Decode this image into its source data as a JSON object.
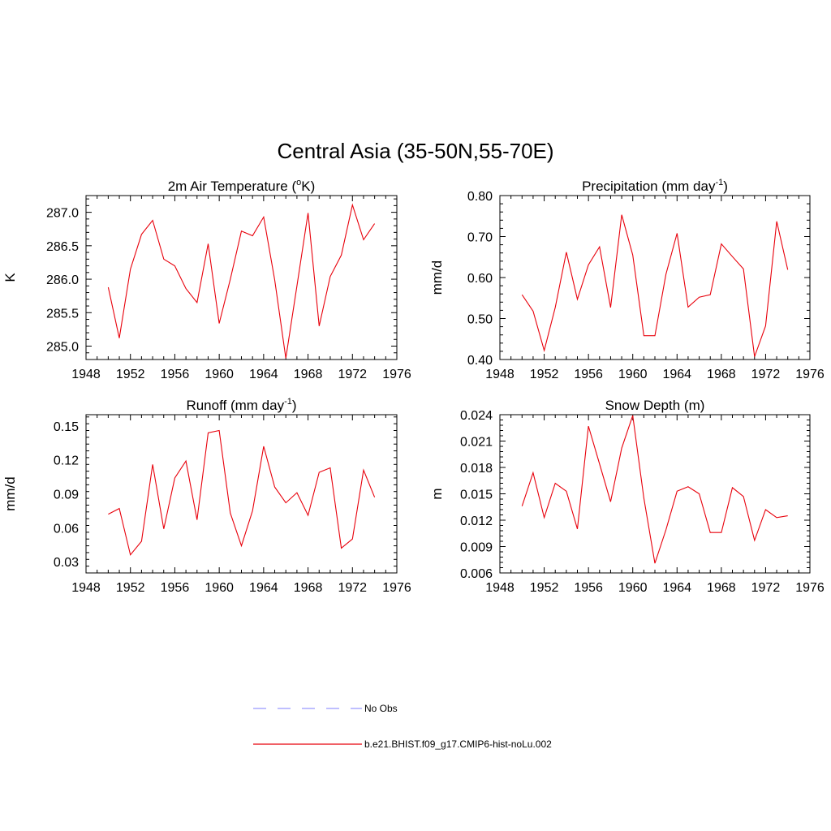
{
  "title": "Central Asia (35-50N,55-70E)",
  "colors": {
    "model": "#e8000b",
    "obs": "#9999ff"
  },
  "legend": {
    "obs_label": "No Obs",
    "model_label": "b.e21.BHIST.f09_g17.CMIP6-hist-noLu.002"
  },
  "chart_data": [
    {
      "type": "line",
      "title_main": "2m Air Temperature (",
      "title_sup": "o",
      "title_end": "K)",
      "ylabel": "K",
      "xlim": [
        1948,
        1976
      ],
      "xticks": [
        1948,
        1952,
        1956,
        1960,
        1964,
        1968,
        1972,
        1976
      ],
      "ylim": [
        284.8,
        287.25
      ],
      "yticks": [
        285.0,
        285.5,
        286.0,
        286.5,
        287.0
      ],
      "ytick_labels": [
        "285.0",
        "285.5",
        "286.0",
        "286.5",
        "287.0"
      ],
      "x": [
        1950,
        1951,
        1952,
        1953,
        1954,
        1955,
        1956,
        1957,
        1958,
        1959,
        1960,
        1961,
        1962,
        1963,
        1964,
        1965,
        1966,
        1967,
        1968,
        1969,
        1970,
        1971,
        1972,
        1973,
        1974
      ],
      "series": [
        {
          "values": [
            285.88,
            285.12,
            286.15,
            286.67,
            286.88,
            286.3,
            286.2,
            285.86,
            285.65,
            286.53,
            285.34,
            286.0,
            286.72,
            286.65,
            286.93,
            285.99,
            284.82,
            285.9,
            286.99,
            285.3,
            286.04,
            286.36,
            287.11,
            286.59,
            286.83
          ]
        }
      ]
    },
    {
      "type": "line",
      "title_main": "Precipitation (mm day",
      "title_sup": "-1",
      "title_end": ")",
      "ylabel": "mm/d",
      "xlim": [
        1948,
        1976
      ],
      "xticks": [
        1948,
        1952,
        1956,
        1960,
        1964,
        1968,
        1972,
        1976
      ],
      "ylim": [
        0.4,
        0.8
      ],
      "yticks": [
        0.4,
        0.5,
        0.6,
        0.7,
        0.8
      ],
      "ytick_labels": [
        "0.40",
        "0.50",
        "0.60",
        "0.70",
        "0.80"
      ],
      "x": [
        1950,
        1951,
        1952,
        1953,
        1954,
        1955,
        1956,
        1957,
        1958,
        1959,
        1960,
        1961,
        1962,
        1963,
        1964,
        1965,
        1966,
        1967,
        1968,
        1969,
        1970,
        1971,
        1972,
        1973,
        1974
      ],
      "series": [
        {
          "values": [
            0.558,
            0.518,
            0.422,
            0.527,
            0.662,
            0.547,
            0.631,
            0.675,
            0.527,
            0.753,
            0.655,
            0.458,
            0.458,
            0.608,
            0.708,
            0.528,
            0.552,
            0.558,
            0.682,
            0.651,
            0.621,
            0.407,
            0.482,
            0.737,
            0.619
          ]
        }
      ]
    },
    {
      "type": "line",
      "title_main": "Runoff (mm day",
      "title_sup": "-1",
      "title_end": ")",
      "ylabel": "mm/d",
      "xlim": [
        1948,
        1976
      ],
      "xticks": [
        1948,
        1952,
        1956,
        1960,
        1964,
        1968,
        1972,
        1976
      ],
      "ylim": [
        0.02,
        0.16
      ],
      "yticks": [
        0.03,
        0.06,
        0.09,
        0.12,
        0.15
      ],
      "ytick_labels": [
        "0.03",
        "0.06",
        "0.09",
        "0.12",
        "0.15"
      ],
      "x": [
        1950,
        1951,
        1952,
        1953,
        1954,
        1955,
        1956,
        1957,
        1958,
        1959,
        1960,
        1961,
        1962,
        1963,
        1964,
        1965,
        1966,
        1967,
        1968,
        1969,
        1970,
        1971,
        1972,
        1973,
        1974
      ],
      "series": [
        {
          "values": [
            0.072,
            0.077,
            0.036,
            0.048,
            0.116,
            0.059,
            0.104,
            0.119,
            0.067,
            0.144,
            0.146,
            0.073,
            0.044,
            0.075,
            0.132,
            0.096,
            0.082,
            0.091,
            0.071,
            0.109,
            0.113,
            0.042,
            0.05,
            0.111,
            0.087
          ]
        }
      ]
    },
    {
      "type": "line",
      "title_main": "Snow Depth (m)",
      "title_sup": "",
      "title_end": "",
      "ylabel": "m",
      "xlim": [
        1948,
        1976
      ],
      "xticks": [
        1948,
        1952,
        1956,
        1960,
        1964,
        1968,
        1972,
        1976
      ],
      "ylim": [
        0.006,
        0.024
      ],
      "yticks": [
        0.006,
        0.009,
        0.012,
        0.015,
        0.018,
        0.021,
        0.024
      ],
      "ytick_labels": [
        "0.006",
        "0.009",
        "0.012",
        "0.015",
        "0.018",
        "0.021",
        "0.024"
      ],
      "x": [
        1950,
        1951,
        1952,
        1953,
        1954,
        1955,
        1956,
        1957,
        1958,
        1959,
        1960,
        1961,
        1962,
        1963,
        1964,
        1965,
        1966,
        1967,
        1968,
        1969,
        1970,
        1971,
        1972,
        1973,
        1974
      ],
      "series": [
        {
          "values": [
            0.0136,
            0.0174,
            0.0123,
            0.0162,
            0.0153,
            0.011,
            0.0227,
            0.0184,
            0.0141,
            0.0202,
            0.0239,
            0.0145,
            0.0071,
            0.0109,
            0.0153,
            0.0158,
            0.015,
            0.0106,
            0.0106,
            0.0157,
            0.0147,
            0.0097,
            0.0132,
            0.0123,
            0.0125
          ]
        }
      ]
    }
  ]
}
